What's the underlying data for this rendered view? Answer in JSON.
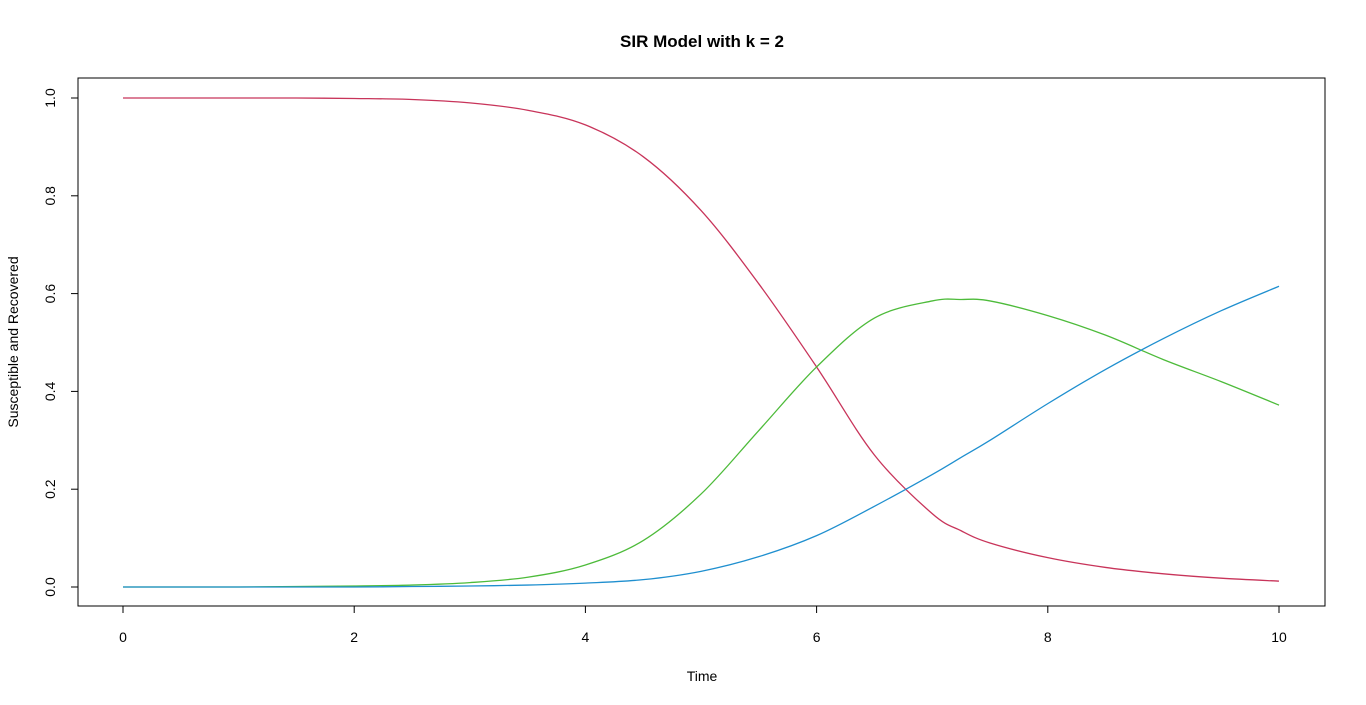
{
  "chart_data": {
    "type": "line",
    "title": "SIR Model with k = 2",
    "xlabel": "Time",
    "ylabel": "Susceptible and Recovered",
    "xlim": [
      0,
      10
    ],
    "ylim": [
      0,
      1
    ],
    "x_ticks": [
      "0",
      "2",
      "4",
      "6",
      "8",
      "10"
    ],
    "y_ticks": [
      "0.0",
      "0.2",
      "0.4",
      "0.6",
      "0.8",
      "1.0"
    ],
    "grid": false,
    "legend": "none",
    "x": [
      0,
      0.5,
      1,
      1.5,
      2,
      2.5,
      3,
      3.5,
      4,
      4.5,
      5,
      5.5,
      6,
      6.5,
      7,
      7.25,
      7.5,
      8,
      8.5,
      9,
      9.5,
      10
    ],
    "series": [
      {
        "color": "#c8345a",
        "values": [
          1.0,
          1.0,
          1.0,
          1.0,
          0.999,
          0.997,
          0.99,
          0.975,
          0.945,
          0.88,
          0.77,
          0.62,
          0.45,
          0.27,
          0.15,
          0.115,
          0.09,
          0.06,
          0.04,
          0.027,
          0.018,
          0.012
        ]
      },
      {
        "color": "#4dbb3a",
        "values": [
          0.0,
          0.0,
          0.0,
          0.001,
          0.002,
          0.004,
          0.009,
          0.02,
          0.045,
          0.095,
          0.19,
          0.32,
          0.45,
          0.55,
          0.585,
          0.588,
          0.585,
          0.555,
          0.515,
          0.465,
          0.42,
          0.372
        ]
      },
      {
        "color": "#1f8fcf",
        "values": [
          0.0,
          0.0,
          0.0,
          0.0,
          0.0,
          0.001,
          0.002,
          0.004,
          0.008,
          0.015,
          0.032,
          0.062,
          0.105,
          0.165,
          0.23,
          0.265,
          0.3,
          0.375,
          0.445,
          0.508,
          0.565,
          0.615
        ]
      }
    ]
  }
}
